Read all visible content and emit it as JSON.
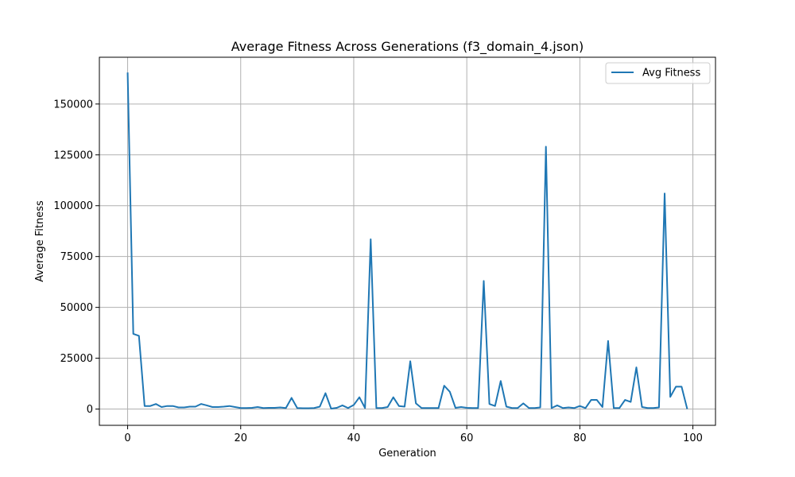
{
  "chart_data": {
    "type": "line",
    "title": "Average Fitness Across Generations (f3_domain_4.json)",
    "xlabel": "Generation",
    "ylabel": "Average Fitness",
    "xlim": [
      -5,
      104
    ],
    "ylim": [
      -8000,
      173000
    ],
    "xticks": [
      0,
      20,
      40,
      60,
      80,
      100
    ],
    "yticks": [
      0,
      25000,
      50000,
      75000,
      100000,
      125000,
      150000
    ],
    "grid": true,
    "legend_position": "top-right",
    "colors": {
      "series": "#1f77b4",
      "grid": "#b0b0b0"
    },
    "series": [
      {
        "name": "Avg Fitness",
        "x": [
          0,
          1,
          2,
          3,
          4,
          5,
          6,
          7,
          8,
          9,
          10,
          11,
          12,
          13,
          14,
          15,
          16,
          17,
          18,
          19,
          20,
          21,
          22,
          23,
          24,
          25,
          26,
          27,
          28,
          29,
          30,
          31,
          32,
          33,
          34,
          35,
          36,
          37,
          38,
          39,
          40,
          41,
          42,
          43,
          44,
          45,
          46,
          47,
          48,
          49,
          50,
          51,
          52,
          53,
          54,
          55,
          56,
          57,
          58,
          59,
          60,
          61,
          62,
          63,
          64,
          65,
          66,
          67,
          68,
          69,
          70,
          71,
          72,
          73,
          74,
          75,
          76,
          77,
          78,
          79,
          80,
          81,
          82,
          83,
          84,
          85,
          86,
          87,
          88,
          89,
          90,
          91,
          92,
          93,
          94,
          95,
          96,
          97,
          98,
          99
        ],
        "values": [
          165500,
          37000,
          36000,
          1500,
          1500,
          2500,
          1000,
          1500,
          1500,
          800,
          800,
          1200,
          1200,
          2500,
          1800,
          1000,
          1000,
          1200,
          1500,
          1000,
          500,
          500,
          600,
          1000,
          500,
          600,
          600,
          800,
          500,
          5500,
          500,
          400,
          400,
          500,
          1200,
          7800,
          200,
          600,
          1800,
          500,
          2000,
          5800,
          500,
          83500,
          500,
          500,
          1000,
          5800,
          1500,
          1200,
          23500,
          2800,
          500,
          500,
          500,
          500,
          11500,
          8500,
          600,
          1000,
          600,
          500,
          500,
          63000,
          2500,
          1500,
          13800,
          1200,
          500,
          500,
          2800,
          500,
          500,
          800,
          129000,
          500,
          1800,
          500,
          800,
          500,
          1500,
          500,
          4500,
          4500,
          1000,
          33500,
          500,
          500,
          4500,
          3500,
          20500,
          1000,
          500,
          500,
          800,
          106000,
          6000,
          11000,
          11000,
          0
        ]
      }
    ]
  }
}
